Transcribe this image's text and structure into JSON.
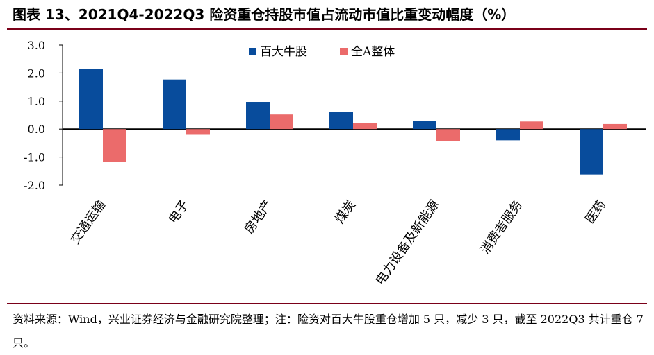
{
  "title": "图表 13、2021Q4-2022Q3 险资重仓持股市值占流动市值比重变动幅度（%）",
  "source_note": "资料来源：Wind，兴业证券经济与金融研究院整理；注：险资对百大牛股重仓增加 5 只，减少 3 只，截至 2022Q3 共计重仓 7 只。",
  "colors": {
    "series_1": "#084C9C",
    "series_2": "#EB6B6B",
    "axis": "#000000",
    "title_rule": "#7a0019"
  },
  "chart_data": {
    "type": "bar",
    "title": "",
    "xlabel": "",
    "ylabel": "",
    "ylim": [
      -2.0,
      3.0
    ],
    "yticks": [
      "3.0",
      "2.0",
      "1.0",
      "0.0",
      "-1.0",
      "-2.0"
    ],
    "ytick_values": [
      3,
      2,
      1,
      0,
      -1,
      -2
    ],
    "grid": false,
    "legend_position": "top-center",
    "categories": [
      "交通运输",
      "电子",
      "房地产",
      "煤炭",
      "电力设备及新能源",
      "消费者服务",
      "医药"
    ],
    "series": [
      {
        "name": "百大牛股",
        "values": [
          2.15,
          1.77,
          0.97,
          0.6,
          0.3,
          -0.4,
          -1.62
        ]
      },
      {
        "name": "全A整体",
        "values": [
          -1.18,
          -0.18,
          0.52,
          0.22,
          -0.43,
          0.27,
          0.18
        ]
      }
    ]
  }
}
